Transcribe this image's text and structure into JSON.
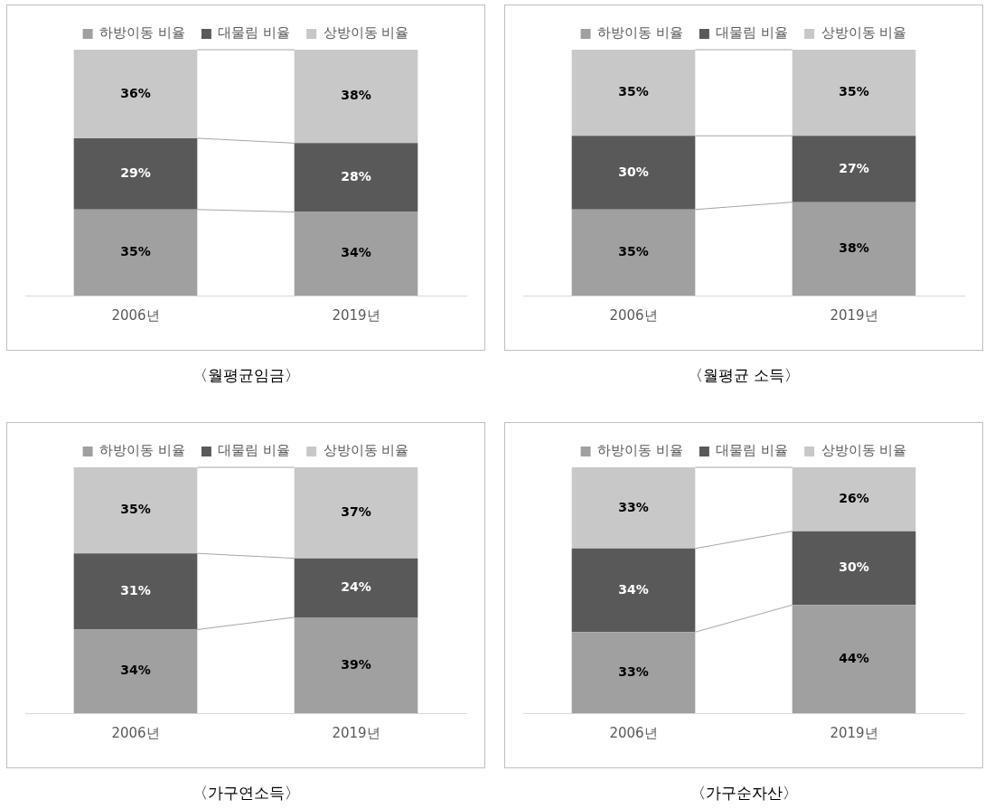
{
  "chart_data": [
    {
      "type": "bar",
      "title": "〈월평균임금〉",
      "categories": [
        "2006년",
        "2019년"
      ],
      "stacked": true,
      "legend": "top",
      "tick_labels": "x",
      "grid": false,
      "series": [
        {
          "name": "하방이동 비율",
          "color": "#a0a0a0",
          "values": [
            35,
            34
          ],
          "value_labels": [
            "35%",
            "34%"
          ]
        },
        {
          "name": "대물림 비율",
          "color": "#595959",
          "values": [
            29,
            28
          ],
          "value_labels": [
            "29%",
            "28%"
          ]
        },
        {
          "name": "상방이동 비율",
          "color": "#c8c8c8",
          "values": [
            36,
            38
          ],
          "value_labels": [
            "36%",
            "38%"
          ]
        }
      ]
    },
    {
      "type": "bar",
      "title": "〈월평균 소득〉",
      "categories": [
        "2006년",
        "2019년"
      ],
      "stacked": true,
      "legend": "top",
      "tick_labels": "x",
      "grid": false,
      "series": [
        {
          "name": "하방이동 비율",
          "color": "#a0a0a0",
          "values": [
            35,
            38
          ],
          "value_labels": [
            "35%",
            "38%"
          ]
        },
        {
          "name": "대물림 비율",
          "color": "#595959",
          "values": [
            30,
            27
          ],
          "value_labels": [
            "30%",
            "27%"
          ]
        },
        {
          "name": "상방이동 비율",
          "color": "#c8c8c8",
          "values": [
            35,
            35
          ],
          "value_labels": [
            "35%",
            "35%"
          ]
        }
      ]
    },
    {
      "type": "bar",
      "title": "〈가구연소득〉",
      "categories": [
        "2006년",
        "2019년"
      ],
      "stacked": true,
      "legend": "top",
      "tick_labels": "x",
      "grid": false,
      "series": [
        {
          "name": "하방이동 비율",
          "color": "#a0a0a0",
          "values": [
            34,
            39
          ],
          "value_labels": [
            "34%",
            "39%"
          ]
        },
        {
          "name": "대물림 비율",
          "color": "#595959",
          "values": [
            31,
            24
          ],
          "value_labels": [
            "31%",
            "24%"
          ]
        },
        {
          "name": "상방이동 비율",
          "color": "#c8c8c8",
          "values": [
            35,
            37
          ],
          "value_labels": [
            "35%",
            "37%"
          ]
        }
      ]
    },
    {
      "type": "bar",
      "title": "〈가구순자산〉",
      "categories": [
        "2006년",
        "2019년"
      ],
      "stacked": true,
      "legend": "top",
      "tick_labels": "x",
      "grid": false,
      "series": [
        {
          "name": "하방이동 비율",
          "color": "#a0a0a0",
          "values": [
            33,
            44
          ],
          "value_labels": [
            "33%",
            "44%"
          ]
        },
        {
          "name": "대물림 비율",
          "color": "#595959",
          "values": [
            34,
            30
          ],
          "value_labels": [
            "34%",
            "30%"
          ]
        },
        {
          "name": "상방이동 비율",
          "color": "#c8c8c8",
          "values": [
            33,
            26
          ],
          "value_labels": [
            "33%",
            "26%"
          ]
        }
      ]
    }
  ]
}
